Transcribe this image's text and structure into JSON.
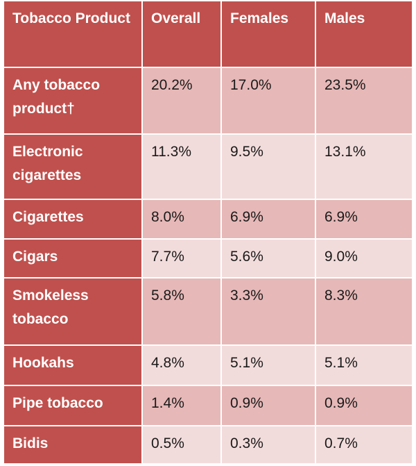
{
  "header": {
    "product": "Tobacco Product",
    "overall": "Overall",
    "females": "Females",
    "males": "Males"
  },
  "rows": [
    {
      "product": "Any tobacco product†",
      "overall": "20.2%",
      "females": "17.0%",
      "males": "23.5%"
    },
    {
      "product": "Electronic cigarettes",
      "overall": "11.3%",
      "females": "9.5%",
      "males": "13.1%"
    },
    {
      "product": "Cigarettes",
      "overall": "8.0%",
      "females": "6.9%",
      "males": "6.9%"
    },
    {
      "product": "Cigars",
      "overall": "7.7%",
      "females": "5.6%",
      "males": "9.0%"
    },
    {
      "product": "Smokeless tobacco",
      "overall": "5.8%",
      "females": "3.3%",
      "males": "8.3%"
    },
    {
      "product": "Hookahs",
      "overall": "4.8%",
      "females": "5.1%",
      "males": "5.1%"
    },
    {
      "product": "Pipe tobacco",
      "overall": "1.4%",
      "females": "0.9%",
      "males": "0.9%"
    },
    {
      "product": "Bidis",
      "overall": "0.5%",
      "females": "0.3%",
      "males": "0.7%"
    }
  ],
  "colors": {
    "header_bg": "#c0504d",
    "row_dark": "#e6b8b7",
    "row_light": "#f2dcdb"
  }
}
